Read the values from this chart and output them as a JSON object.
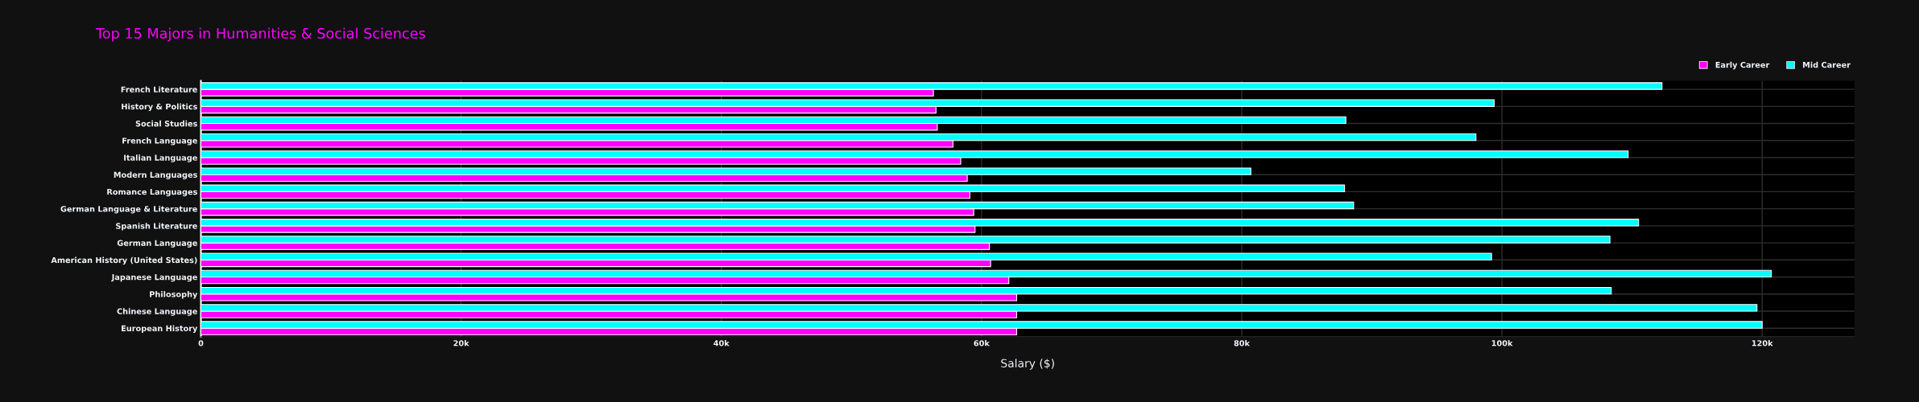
{
  "chart_data": {
    "type": "bar",
    "orientation": "horizontal",
    "title": "Top 15 Majors in Humanities & Social Sciences",
    "xlabel": "Salary ($)",
    "categories": [
      "French Literature",
      "History & Politics",
      "Social Studies",
      "French Language",
      "Italian Language",
      "Modern Languages",
      "Romance Languages",
      "German Language & Literature",
      "Spanish Literature",
      "German Language",
      "American History (United States)",
      "Japanese Language",
      "Philosophy",
      "Chinese Language",
      "European History"
    ],
    "series": [
      {
        "name": "Early Career",
        "color": "#ff00ff",
        "values": [
          56300,
          56500,
          56600,
          57800,
          58400,
          58900,
          59100,
          59400,
          59500,
          60600,
          60700,
          62100,
          62700,
          62700,
          62700
        ]
      },
      {
        "name": "Mid Career",
        "color": "#00ffff",
        "values": [
          112300,
          99400,
          88000,
          98000,
          109700,
          80700,
          87900,
          88600,
          110500,
          108300,
          99200,
          120700,
          108400,
          119600,
          120000
        ]
      }
    ],
    "xlim": [
      0,
      127100
    ],
    "xticks": [
      0,
      {
        "value": 20000,
        "label": "20k"
      },
      {
        "value": 40000,
        "label": "40k"
      },
      {
        "value": 60000,
        "label": "60k"
      },
      {
        "value": 80000,
        "label": "80k"
      },
      {
        "value": 100000,
        "label": "100k"
      },
      {
        "value": 120000,
        "label": "120k"
      }
    ],
    "grid": true,
    "legend": "top right"
  }
}
